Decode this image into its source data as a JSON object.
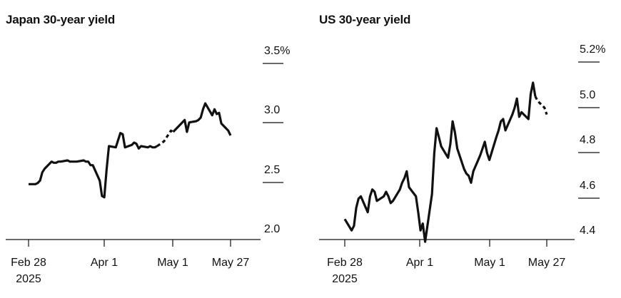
{
  "chart_data": [
    {
      "type": "line",
      "title": "Japan 30-year yield",
      "x_ticks": [
        "Feb 28",
        "Apr 1",
        "May 1",
        "May 27"
      ],
      "x_tick_sublabels": [
        "2025",
        "",
        "",
        ""
      ],
      "y_ticks": [
        "3.5%",
        "3.0",
        "2.5",
        "2.0"
      ],
      "ylim": [
        2.0,
        3.5
      ],
      "grid": false,
      "x_dates": [
        "2025-02-28",
        "2025-03-03",
        "2025-03-04",
        "2025-03-05",
        "2025-03-06",
        "2025-03-07",
        "2025-03-10",
        "2025-03-11",
        "2025-03-12",
        "2025-03-13",
        "2025-03-14",
        "2025-03-17",
        "2025-03-18",
        "2025-03-19",
        "2025-03-21",
        "2025-03-24",
        "2025-03-25",
        "2025-03-26",
        "2025-03-27",
        "2025-03-28",
        "2025-03-31",
        "2025-04-01",
        "2025-04-02",
        "2025-04-03",
        "2025-04-04",
        "2025-04-07",
        "2025-04-08",
        "2025-04-09",
        "2025-04-10",
        "2025-04-11",
        "2025-04-14",
        "2025-04-15",
        "2025-04-16",
        "2025-04-17",
        "2025-04-18",
        "2025-04-21",
        "2025-04-22",
        "2025-04-23",
        "2025-04-24",
        "2025-04-25",
        "2025-04-28",
        "2025-04-30",
        "2025-05-01",
        "2025-05-02",
        "2025-05-07",
        "2025-05-08",
        "2025-05-09",
        "2025-05-12",
        "2025-05-13",
        "2025-05-14",
        "2025-05-15",
        "2025-05-16",
        "2025-05-19",
        "2025-05-20",
        "2025-05-21",
        "2025-05-22",
        "2025-05-23",
        "2025-05-26",
        "2025-05-27"
      ],
      "y_values": [
        2.37,
        2.37,
        2.38,
        2.4,
        2.47,
        2.5,
        2.56,
        2.55,
        2.55,
        2.56,
        2.56,
        2.57,
        2.56,
        2.56,
        2.56,
        2.57,
        2.56,
        2.56,
        2.53,
        2.53,
        2.4,
        2.27,
        2.26,
        2.49,
        2.69,
        2.68,
        2.74,
        2.8,
        2.79,
        2.68,
        2.7,
        2.72,
        2.71,
        2.67,
        2.69,
        2.68,
        2.69,
        2.68,
        2.68,
        2.69,
        2.73,
        2.79,
        2.82,
        2.81,
        2.91,
        2.81,
        2.89,
        2.9,
        2.91,
        2.93,
        3.0,
        3.05,
        2.95,
        3.0,
        2.96,
        2.97,
        2.88,
        2.82,
        2.78
      ],
      "dashed_segment_dates": [
        "2025-04-28",
        "2025-05-02"
      ]
    },
    {
      "type": "line",
      "title": "US 30-year yield",
      "x_ticks": [
        "Feb 28",
        "Apr 1",
        "May 1",
        "May 27"
      ],
      "x_tick_sublabels": [
        "2025",
        "",
        "",
        ""
      ],
      "y_ticks": [
        "5.2%",
        "5.0",
        "4.8",
        "4.6",
        "4.4"
      ],
      "ylim": [
        4.4,
        5.2
      ],
      "grid": false,
      "x_dates": [
        "2025-02-28",
        "2025-03-03",
        "2025-03-04",
        "2025-03-05",
        "2025-03-06",
        "2025-03-07",
        "2025-03-10",
        "2025-03-11",
        "2025-03-12",
        "2025-03-13",
        "2025-03-14",
        "2025-03-17",
        "2025-03-18",
        "2025-03-19",
        "2025-03-20",
        "2025-03-21",
        "2025-03-24",
        "2025-03-25",
        "2025-03-26",
        "2025-03-27",
        "2025-03-28",
        "2025-03-31",
        "2025-04-01",
        "2025-04-02",
        "2025-04-03",
        "2025-04-04",
        "2025-04-07",
        "2025-04-08",
        "2025-04-09",
        "2025-04-10",
        "2025-04-11",
        "2025-04-14",
        "2025-04-15",
        "2025-04-16",
        "2025-04-17",
        "2025-04-18",
        "2025-04-21",
        "2025-04-22",
        "2025-04-23",
        "2025-04-24",
        "2025-04-25",
        "2025-04-28",
        "2025-04-29",
        "2025-04-30",
        "2025-05-01",
        "2025-05-02",
        "2025-05-05",
        "2025-05-06",
        "2025-05-07",
        "2025-05-08",
        "2025-05-09",
        "2025-05-12",
        "2025-05-13",
        "2025-05-14",
        "2025-05-15",
        "2025-05-16",
        "2025-05-19",
        "2025-05-20",
        "2025-05-21",
        "2025-05-22",
        "2025-05-23",
        "2025-05-26",
        "2025-05-27"
      ],
      "y_values": [
        4.44,
        4.39,
        4.41,
        4.49,
        4.53,
        4.54,
        4.47,
        4.54,
        4.57,
        4.56,
        4.52,
        4.54,
        4.56,
        4.54,
        4.51,
        4.52,
        4.57,
        4.6,
        4.62,
        4.65,
        4.58,
        4.54,
        4.47,
        4.39,
        4.42,
        4.34,
        4.55,
        4.73,
        4.84,
        4.8,
        4.76,
        4.71,
        4.77,
        4.87,
        4.82,
        4.75,
        4.66,
        4.64,
        4.63,
        4.6,
        4.65,
        4.72,
        4.75,
        4.78,
        4.73,
        4.7,
        4.8,
        4.83,
        4.87,
        4.88,
        4.83,
        4.9,
        4.93,
        4.97,
        4.89,
        4.91,
        4.88,
        4.99,
        5.04,
        4.98,
        4.96,
        4.93,
        4.9
      ],
      "dashed_segment_dates": [
        "2025-05-23",
        "2025-05-27"
      ]
    }
  ]
}
